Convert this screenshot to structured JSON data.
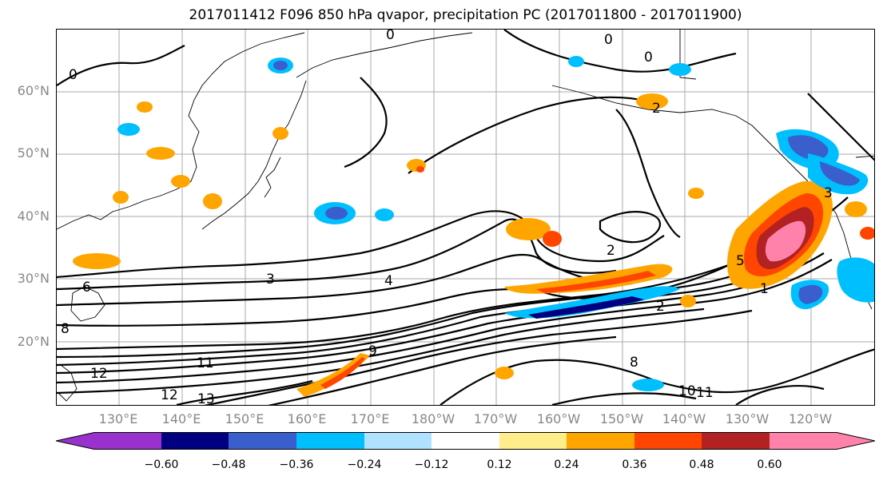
{
  "title": "2017011412 F096 850 hPa qvapor, precipitation PC (2017011800 - 2017011900)",
  "lat_labels": [
    "60°N",
    "50°N",
    "40°N",
    "30°N",
    "20°N"
  ],
  "lon_labels": [
    "130°E",
    "140°E",
    "150°E",
    "160°E",
    "170°E",
    "180°W",
    "170°W",
    "160°W",
    "150°W",
    "140°W",
    "130°W",
    "120°W"
  ],
  "colorbar": {
    "colors": [
      "#9932cc",
      "#000080",
      "#3a5fcd",
      "#00bfff",
      "#b0e2ff",
      "#ffffff",
      "#ffec8b",
      "#ffa500",
      "#ff4500",
      "#b22222",
      "#ff82ab"
    ],
    "tick_labels": [
      "−0.60",
      "−0.48",
      "−0.36",
      "−0.24",
      "−0.12",
      "0.12",
      "0.24",
      "0.36",
      "0.48",
      "0.60"
    ]
  },
  "contour_labels": [
    "0",
    "0",
    "0",
    "0",
    "2",
    "2",
    "2",
    "3",
    "3",
    "4",
    "5",
    "6",
    "8",
    "8",
    "9",
    "10",
    "11",
    "11",
    "12",
    "12",
    "13",
    "1"
  ]
}
